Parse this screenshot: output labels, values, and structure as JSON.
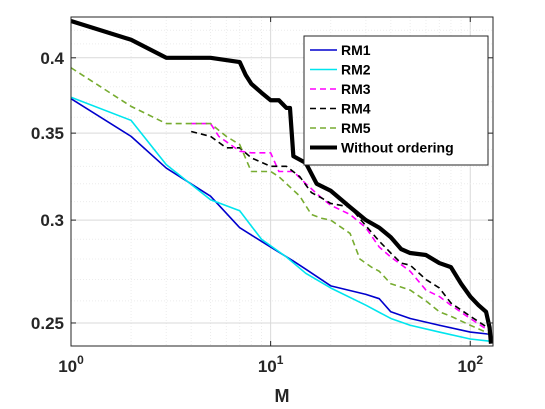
{
  "chart_data": {
    "type": "line",
    "title": "",
    "xlabel": "M",
    "ylabel": "",
    "xscale": "log",
    "yscale": "log",
    "xlim": [
      1,
      130
    ],
    "ylim": [
      0.24,
      0.43
    ],
    "xticks": [
      {
        "value": 1,
        "base": "10",
        "exp": "0"
      },
      {
        "value": 10,
        "base": "10",
        "exp": "1"
      },
      {
        "value": 100,
        "base": "10",
        "exp": "2"
      }
    ],
    "yticks": [
      {
        "value": 0.25,
        "label": "0.25"
      },
      {
        "value": 0.3,
        "label": "0.3"
      },
      {
        "value": 0.35,
        "label": "0.35"
      },
      {
        "value": 0.4,
        "label": "0.4"
      }
    ],
    "grid": true,
    "legend_position": "top-right",
    "series": [
      {
        "name": "RM1",
        "color": "#0000CD",
        "width": 1.6,
        "dash": "",
        "points": [
          [
            1,
            0.372
          ],
          [
            2,
            0.348
          ],
          [
            3,
            0.329
          ],
          [
            5,
            0.313
          ],
          [
            7,
            0.296
          ],
          [
            10,
            0.286
          ],
          [
            13,
            0.279
          ],
          [
            15,
            0.275
          ],
          [
            20,
            0.267
          ],
          [
            30,
            0.263
          ],
          [
            35,
            0.261
          ],
          [
            40,
            0.255
          ],
          [
            50,
            0.252
          ],
          [
            70,
            0.249
          ],
          [
            100,
            0.246
          ],
          [
            127,
            0.245
          ]
        ]
      },
      {
        "name": "RM2",
        "color": "#00E5EE",
        "width": 1.6,
        "dash": "",
        "points": [
          [
            1,
            0.373
          ],
          [
            2,
            0.358
          ],
          [
            3,
            0.331
          ],
          [
            5,
            0.311
          ],
          [
            7,
            0.305
          ],
          [
            9,
            0.29
          ],
          [
            12,
            0.281
          ],
          [
            15,
            0.273
          ],
          [
            20,
            0.266
          ],
          [
            30,
            0.258
          ],
          [
            40,
            0.252
          ],
          [
            50,
            0.249
          ],
          [
            70,
            0.246
          ],
          [
            100,
            0.243
          ],
          [
            127,
            0.242
          ]
        ]
      },
      {
        "name": "RM3",
        "color": "#FF00FF",
        "width": 1.6,
        "dash": "6 4",
        "points": [
          [
            4,
            0.356
          ],
          [
            5,
            0.356
          ],
          [
            5.5,
            0.348
          ],
          [
            7,
            0.339
          ],
          [
            8,
            0.338
          ],
          [
            10,
            0.338
          ],
          [
            11,
            0.327
          ],
          [
            13,
            0.327
          ],
          [
            15,
            0.32
          ],
          [
            18,
            0.312
          ],
          [
            20,
            0.308
          ],
          [
            25,
            0.303
          ],
          [
            30,
            0.296
          ],
          [
            35,
            0.286
          ],
          [
            40,
            0.281
          ],
          [
            50,
            0.274
          ],
          [
            60,
            0.265
          ],
          [
            70,
            0.262
          ],
          [
            80,
            0.258
          ],
          [
            100,
            0.252
          ],
          [
            127,
            0.246
          ]
        ]
      },
      {
        "name": "RM4",
        "color": "#000000",
        "width": 1.6,
        "dash": "6 4",
        "points": [
          [
            4,
            0.351
          ],
          [
            5,
            0.348
          ],
          [
            6,
            0.341
          ],
          [
            7,
            0.341
          ],
          [
            8,
            0.335
          ],
          [
            10,
            0.33
          ],
          [
            12,
            0.33
          ],
          [
            14,
            0.324
          ],
          [
            16,
            0.315
          ],
          [
            18,
            0.312
          ],
          [
            20,
            0.309
          ],
          [
            25,
            0.307
          ],
          [
            30,
            0.297
          ],
          [
            35,
            0.289
          ],
          [
            40,
            0.283
          ],
          [
            45,
            0.278
          ],
          [
            50,
            0.277
          ],
          [
            60,
            0.27
          ],
          [
            70,
            0.266
          ],
          [
            80,
            0.259
          ],
          [
            100,
            0.253
          ],
          [
            127,
            0.247
          ]
        ]
      },
      {
        "name": "RM5",
        "color": "#77AC30",
        "width": 1.6,
        "dash": "6 4",
        "points": [
          [
            1,
            0.393
          ],
          [
            2,
            0.367
          ],
          [
            3,
            0.356
          ],
          [
            5,
            0.356
          ],
          [
            6,
            0.348
          ],
          [
            7,
            0.343
          ],
          [
            8,
            0.327
          ],
          [
            10,
            0.327
          ],
          [
            11,
            0.324
          ],
          [
            12,
            0.32
          ],
          [
            14,
            0.313
          ],
          [
            16,
            0.303
          ],
          [
            18,
            0.301
          ],
          [
            20,
            0.3
          ],
          [
            25,
            0.293
          ],
          [
            28,
            0.28
          ],
          [
            32,
            0.276
          ],
          [
            35,
            0.274
          ],
          [
            40,
            0.268
          ],
          [
            50,
            0.265
          ],
          [
            60,
            0.26
          ],
          [
            70,
            0.255
          ],
          [
            80,
            0.253
          ],
          [
            100,
            0.249
          ],
          [
            127,
            0.245
          ]
        ]
      },
      {
        "name": "Without ordering",
        "color": "#000000",
        "width": 4.2,
        "dash": "",
        "points": [
          [
            1,
            0.427
          ],
          [
            2,
            0.413
          ],
          [
            3,
            0.4
          ],
          [
            5,
            0.4
          ],
          [
            7,
            0.397
          ],
          [
            7.5,
            0.388
          ],
          [
            8,
            0.382
          ],
          [
            9,
            0.376
          ],
          [
            10,
            0.371
          ],
          [
            11,
            0.371
          ],
          [
            12,
            0.366
          ],
          [
            12.5,
            0.366
          ],
          [
            13,
            0.336
          ],
          [
            15,
            0.332
          ],
          [
            17,
            0.32
          ],
          [
            20,
            0.316
          ],
          [
            25,
            0.307
          ],
          [
            30,
            0.3
          ],
          [
            35,
            0.296
          ],
          [
            40,
            0.291
          ],
          [
            45,
            0.285
          ],
          [
            50,
            0.283
          ],
          [
            60,
            0.282
          ],
          [
            70,
            0.278
          ],
          [
            80,
            0.276
          ],
          [
            90,
            0.268
          ],
          [
            100,
            0.262
          ],
          [
            110,
            0.258
          ],
          [
            120,
            0.255
          ],
          [
            125,
            0.248
          ],
          [
            127,
            0.241
          ]
        ]
      }
    ]
  }
}
